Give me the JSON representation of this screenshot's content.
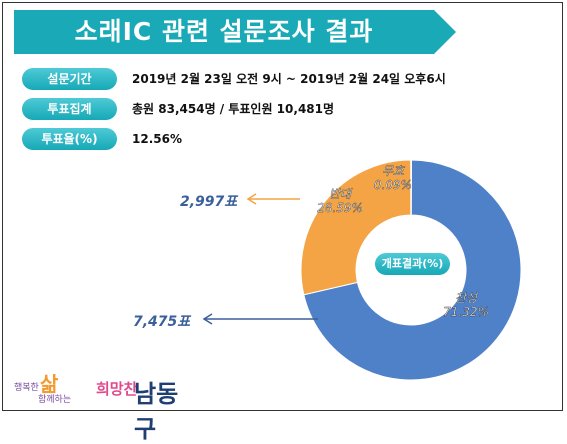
{
  "banner": {
    "title": "소래IC 관련 설문조사 결과",
    "color": "#19a9b7"
  },
  "info_rows": [
    {
      "label": "설문기간",
      "value": "2019년 2월 23일 오전 9시 ~ 2019년 2월 24일 오후6시"
    },
    {
      "label": "투표집계",
      "value": "총원 83,454명 / 투표인원 10,481명"
    },
    {
      "label": "투표율(%)",
      "value": "12.56%"
    }
  ],
  "chart_data": {
    "type": "pie",
    "donut": true,
    "center_label": "개표결과(%)",
    "slices": [
      {
        "label": "찬성",
        "value": 71.32,
        "value_label": "71.32%",
        "votes_label": "7,475표",
        "color": "#4f81c9"
      },
      {
        "label": "반대",
        "value": 28.59,
        "value_label": "28.59%",
        "votes_label": "2,997표",
        "color": "#f4a445"
      },
      {
        "label": "무효",
        "value": 0.09,
        "value_label": "0.09%",
        "color": "#3a5f9a"
      }
    ]
  },
  "logo": {
    "text_main": "남동구",
    "text_mid": "희망찬",
    "text_sal": "삶",
    "text_small_1": "행복한",
    "text_small_2": "함께하는"
  }
}
